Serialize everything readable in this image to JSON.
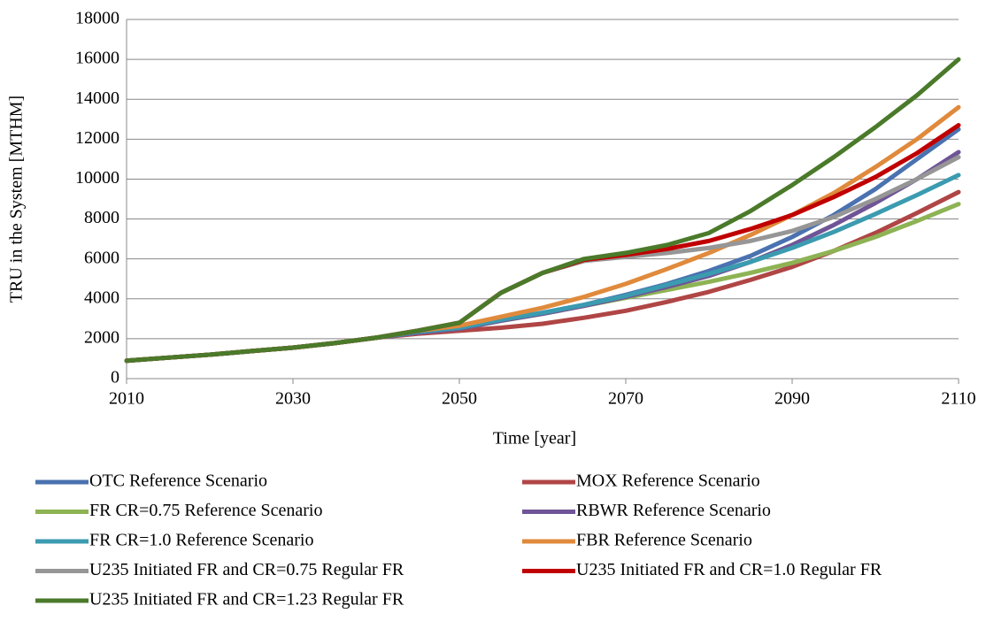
{
  "chart_data": {
    "type": "line",
    "x_label": "Time [year]",
    "y_label": "TRU in the System [MTHM]",
    "x": [
      2010,
      2015,
      2020,
      2025,
      2030,
      2035,
      2040,
      2045,
      2050,
      2055,
      2060,
      2065,
      2070,
      2075,
      2080,
      2085,
      2090,
      2095,
      2100,
      2105,
      2110
    ],
    "xlim": [
      2010,
      2110
    ],
    "xticks": [
      2010,
      2030,
      2050,
      2070,
      2090,
      2110
    ],
    "ylim": [
      0,
      18000
    ],
    "yticks": [
      0,
      2000,
      4000,
      6000,
      8000,
      10000,
      12000,
      14000,
      16000,
      18000
    ],
    "grid": true,
    "legend": "bottom",
    "series": [
      {
        "name": "OTC Reference Scenario",
        "color": "#4a72b0",
        "values": [
          900,
          1050,
          1200,
          1380,
          1550,
          1780,
          2050,
          2350,
          2550,
          2950,
          3300,
          3700,
          4200,
          4750,
          5400,
          6150,
          7100,
          8200,
          9500,
          11000,
          12500
        ]
      },
      {
        "name": "MOX Reference Scenario",
        "color": "#b04545",
        "values": [
          900,
          1050,
          1200,
          1380,
          1550,
          1780,
          2050,
          2250,
          2400,
          2550,
          2750,
          3050,
          3400,
          3850,
          4350,
          4950,
          5600,
          6400,
          7300,
          8300,
          9350
        ]
      },
      {
        "name": "FR CR=0.75 Reference Scenario",
        "color": "#8db354",
        "values": [
          900,
          1050,
          1200,
          1380,
          1550,
          1780,
          2050,
          2300,
          2500,
          2900,
          3250,
          3650,
          4050,
          4450,
          4850,
          5300,
          5800,
          6400,
          7100,
          7900,
          8750
        ]
      },
      {
        "name": "RBWR Reference Scenario",
        "color": "#6f5596",
        "values": [
          900,
          1050,
          1200,
          1380,
          1550,
          1780,
          2050,
          2300,
          2500,
          2900,
          3250,
          3650,
          4100,
          4600,
          5150,
          5850,
          6700,
          7700,
          8800,
          10000,
          11350
        ]
      },
      {
        "name": "FR CR=1.0 Reference Scenario",
        "color": "#3b9bb0",
        "values": [
          900,
          1050,
          1200,
          1380,
          1550,
          1780,
          2050,
          2350,
          2550,
          2950,
          3300,
          3700,
          4150,
          4700,
          5250,
          5850,
          6550,
          7350,
          8250,
          9200,
          10200
        ]
      },
      {
        "name": "FBR Reference Scenario",
        "color": "#e08a3c",
        "values": [
          900,
          1050,
          1200,
          1380,
          1550,
          1780,
          2050,
          2400,
          2650,
          3100,
          3550,
          4100,
          4750,
          5500,
          6300,
          7200,
          8200,
          9300,
          10600,
          12000,
          13600
        ]
      },
      {
        "name": "U235 Initiated FR and CR=0.75 Regular FR",
        "color": "#969696",
        "values": [
          900,
          1050,
          1200,
          1380,
          1550,
          1780,
          2050,
          2400,
          2800,
          4300,
          5300,
          5900,
          6100,
          6300,
          6550,
          6900,
          7400,
          8100,
          9000,
          10000,
          11100
        ]
      },
      {
        "name": "U235 Initiated FR and CR=1.0 Regular FR",
        "color": "#c00000",
        "values": [
          900,
          1050,
          1200,
          1380,
          1550,
          1780,
          2050,
          2400,
          2800,
          4300,
          5300,
          5950,
          6200,
          6500,
          6900,
          7500,
          8200,
          9100,
          10100,
          11300,
          12700
        ]
      },
      {
        "name": "U235 Initiated FR and CR=1.23 Regular FR",
        "color": "#4a7a2a",
        "values": [
          900,
          1050,
          1200,
          1380,
          1550,
          1780,
          2050,
          2400,
          2800,
          4300,
          5300,
          6000,
          6300,
          6700,
          7300,
          8400,
          9700,
          11100,
          12600,
          14200,
          16000
        ]
      }
    ]
  }
}
